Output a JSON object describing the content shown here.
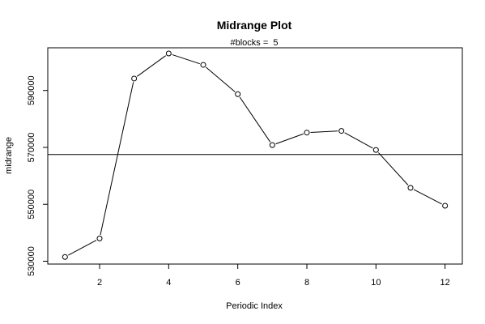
{
  "chart_data": {
    "type": "line",
    "title": "Midrange Plot",
    "subtitle": "#blocks =  5",
    "xlabel": "Periodic Index",
    "ylabel": "midrange",
    "xlim": [
      0.5,
      12.5
    ],
    "ylim": [
      529000,
      605000
    ],
    "x_ticks": [
      2,
      4,
      6,
      8,
      10,
      12
    ],
    "x_tick_labels": [
      "2",
      "4",
      "6",
      "8",
      "10",
      "12"
    ],
    "y_ticks": [
      530000,
      550000,
      570000,
      590000
    ],
    "y_tick_labels": [
      "530000",
      "550000",
      "570000",
      "590000"
    ],
    "x": [
      1,
      2,
      3,
      4,
      5,
      6,
      7,
      8,
      9,
      10,
      11,
      12
    ],
    "values": [
      531500,
      538000,
      594200,
      603000,
      599000,
      588700,
      570800,
      575200,
      575800,
      569100,
      555800,
      549500
    ],
    "reference_line": 567500,
    "grid": false,
    "marker": "open-circle",
    "line_color": "#000000"
  }
}
